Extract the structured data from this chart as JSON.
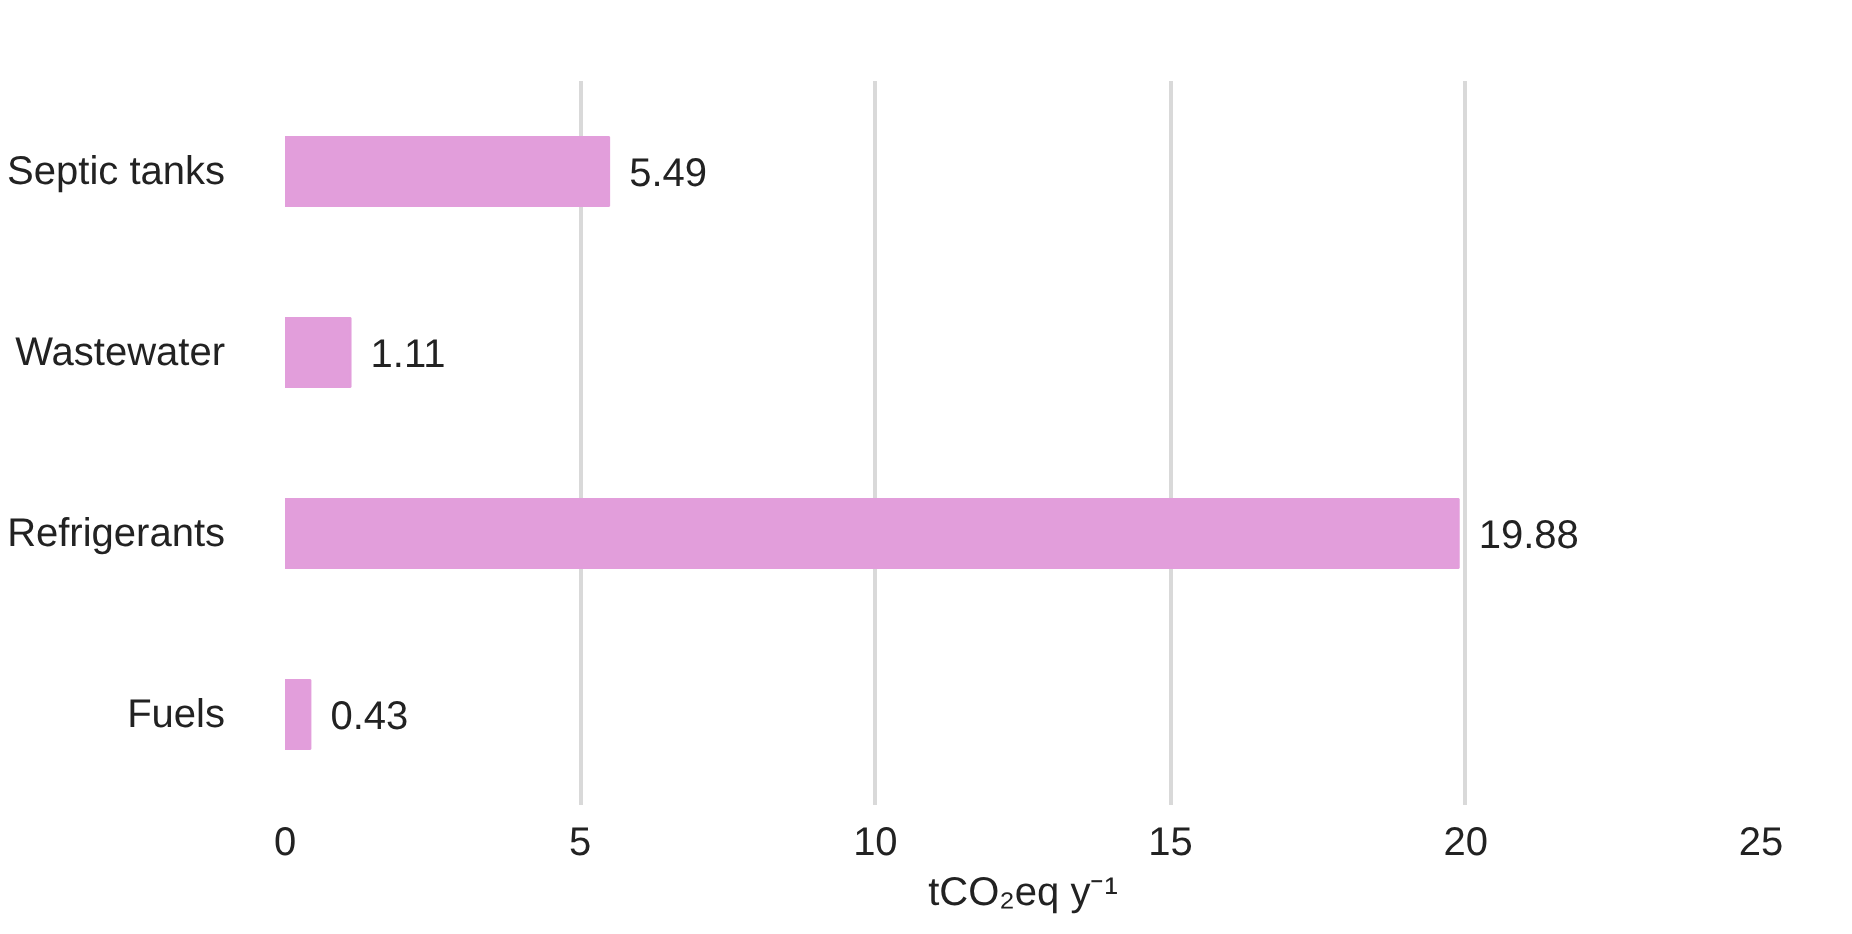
{
  "chart_data": {
    "type": "bar",
    "orientation": "horizontal",
    "xlabel": "tCO₂eq y⁻¹",
    "categories": [
      "Septic tanks",
      "Wastewater",
      "Refrigerants",
      "Fuels"
    ],
    "values": [
      5.49,
      1.11,
      19.88,
      0.43
    ],
    "color": "#e29edb",
    "xlim": [
      0,
      25
    ],
    "xticks": [
      0,
      5,
      10,
      15,
      20,
      25
    ],
    "grid": "x",
    "data_labels": true
  }
}
